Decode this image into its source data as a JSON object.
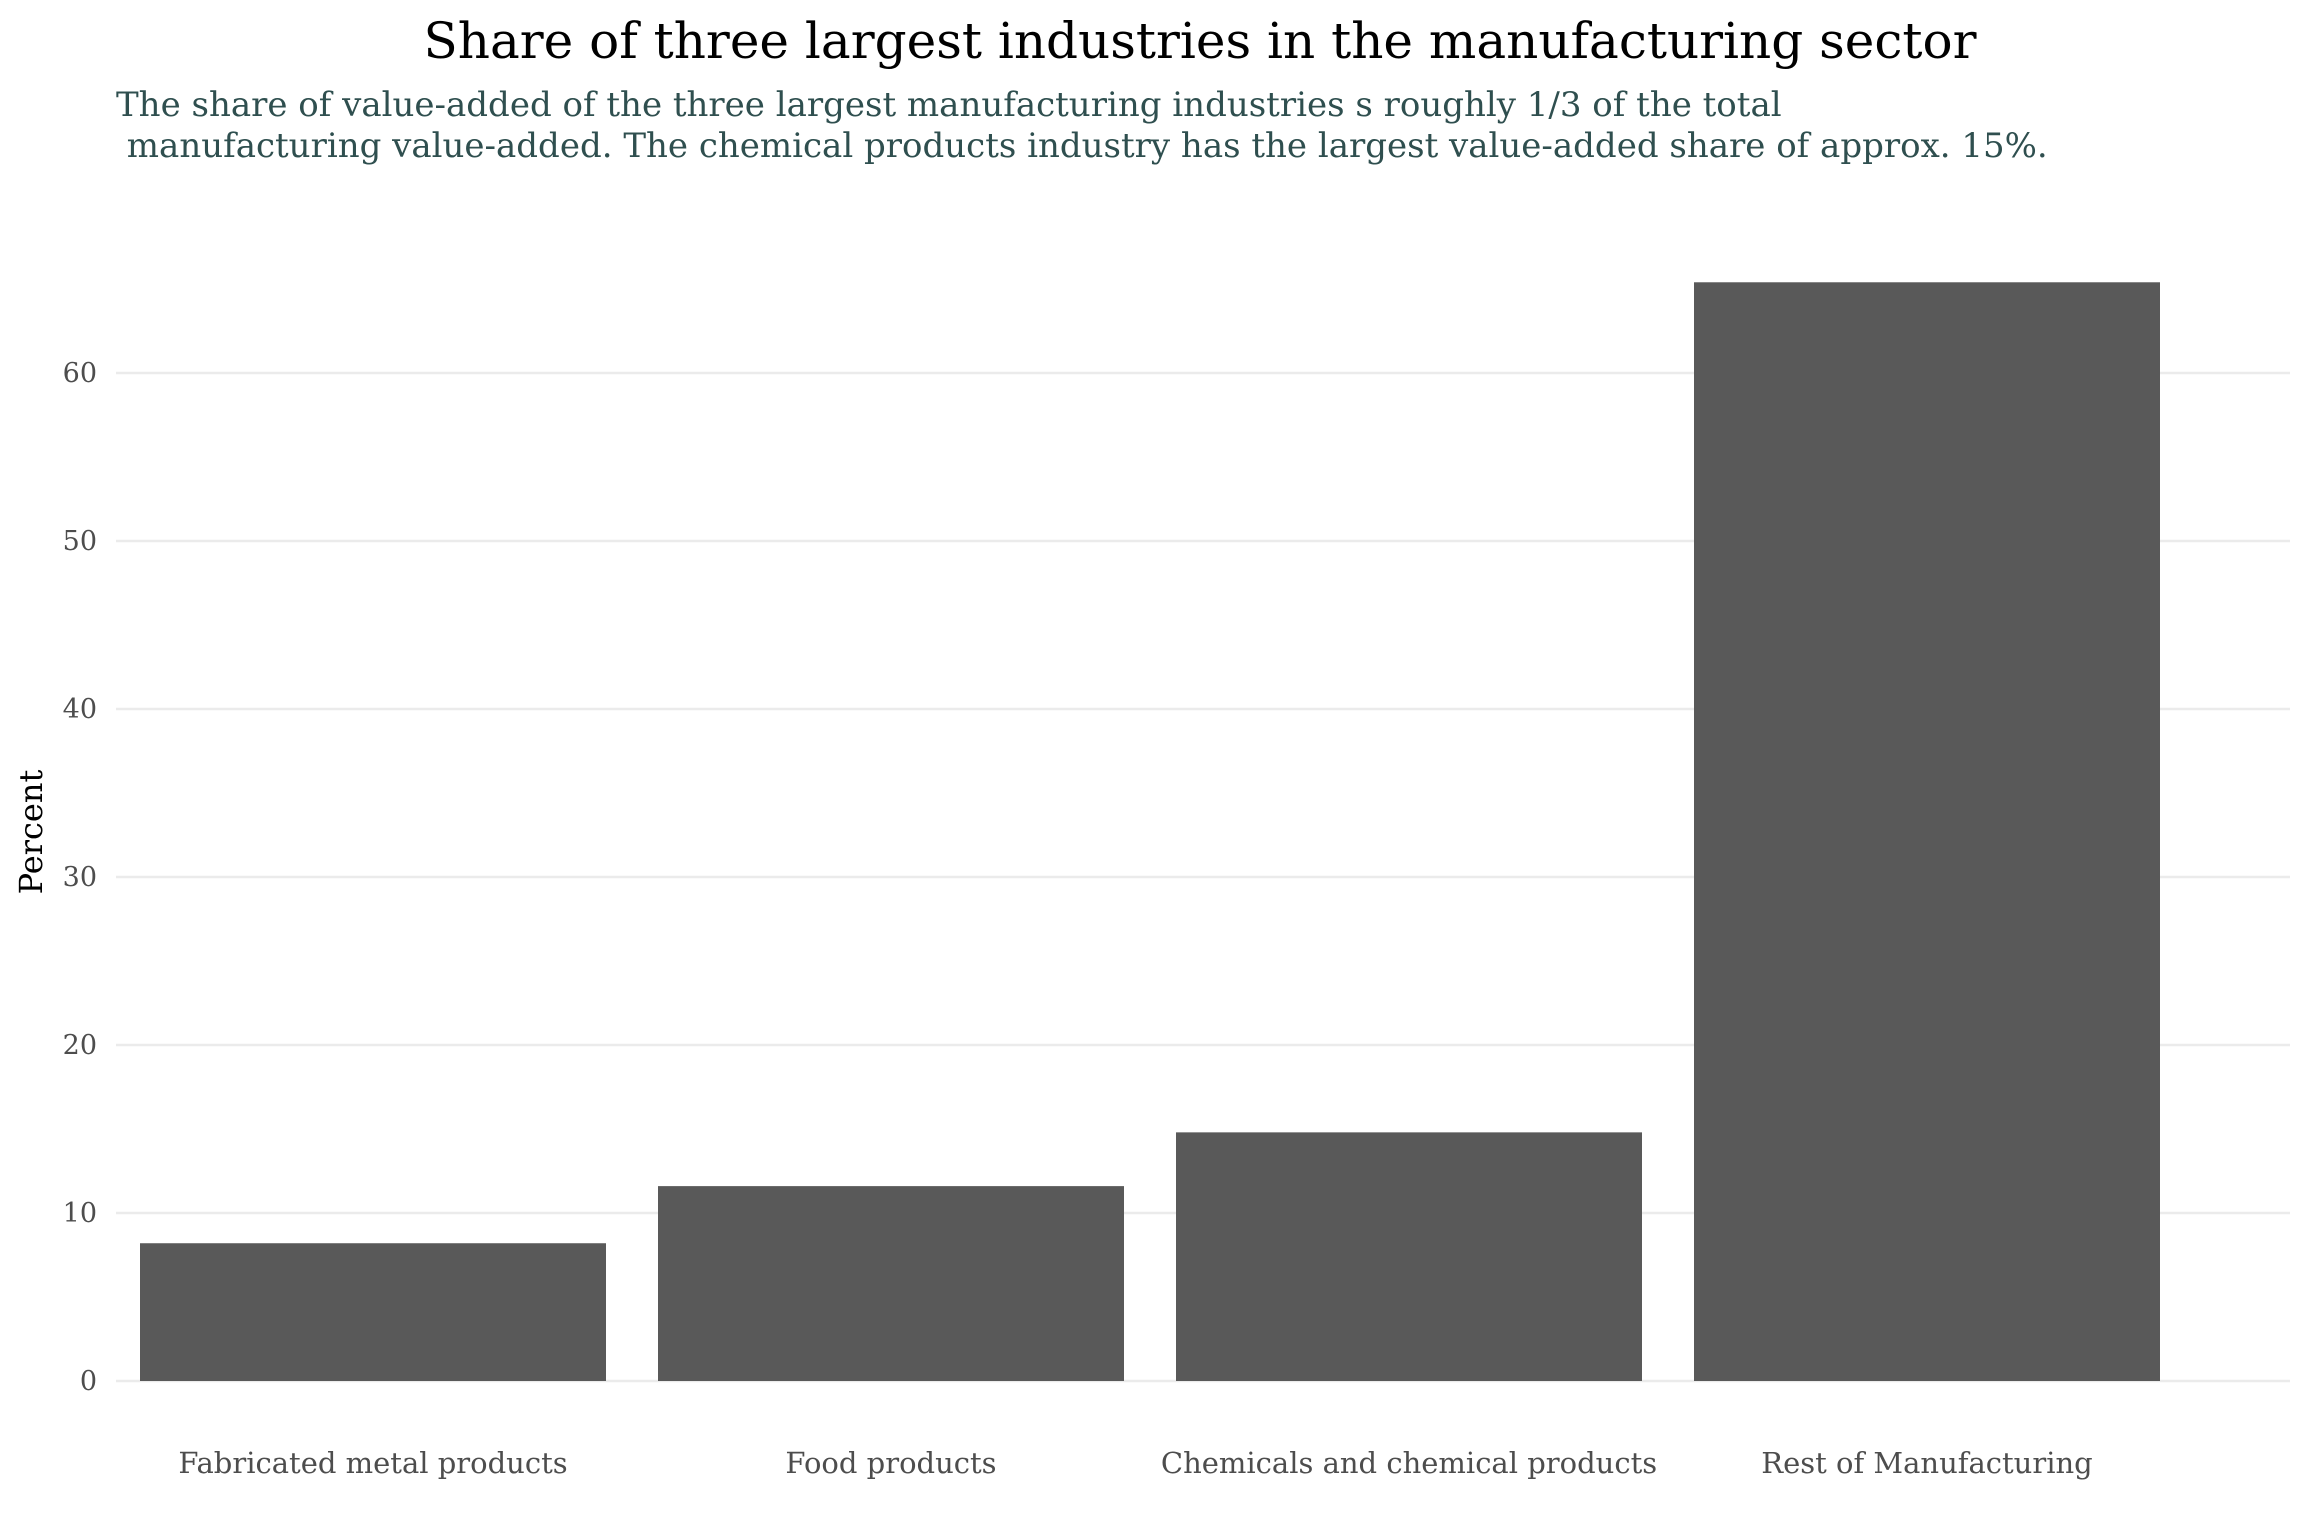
{
  "chart_data": {
    "type": "bar",
    "title": "Share of three largest industries in the manufacturing sector",
    "subtitle": [
      "The share of value-added of the three largest manufacturing industries s roughly 1/3  of the total",
      " manufacturing value-added. The chemical products industry has the largest value-added share of approx. 15%."
    ],
    "xlabel": "",
    "ylabel": "Percent",
    "categories": [
      "Fabricated metal products",
      "Food products",
      "Chemicals and chemical products",
      "Rest of Manufacturing"
    ],
    "values": [
      8.2,
      11.6,
      14.8,
      65.4
    ],
    "ylim": [
      0,
      67
    ],
    "yticks": [
      0,
      10,
      20,
      30,
      40,
      50,
      60
    ],
    "grid": true,
    "legend": "none",
    "colors": {
      "bar": "#595959",
      "grid": "#ebebeb",
      "subtitle": "#2f4f4f"
    }
  }
}
